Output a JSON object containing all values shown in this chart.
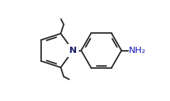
{
  "bg_color": "#ffffff",
  "line_color": "#2a2a2a",
  "line_width": 1.5,
  "dbo": 0.022,
  "dbs": 0.055,
  "N_label": "N",
  "NH2_label": "NH₂",
  "label_fontsize": 9.5,
  "N_color": "#1a1a6e",
  "NH2_color": "#1515bb",
  "figsize": [
    2.48,
    1.47
  ],
  "dpi": 100,
  "xlim": [
    -0.62,
    0.72
  ],
  "ylim": [
    -0.52,
    0.52
  ]
}
